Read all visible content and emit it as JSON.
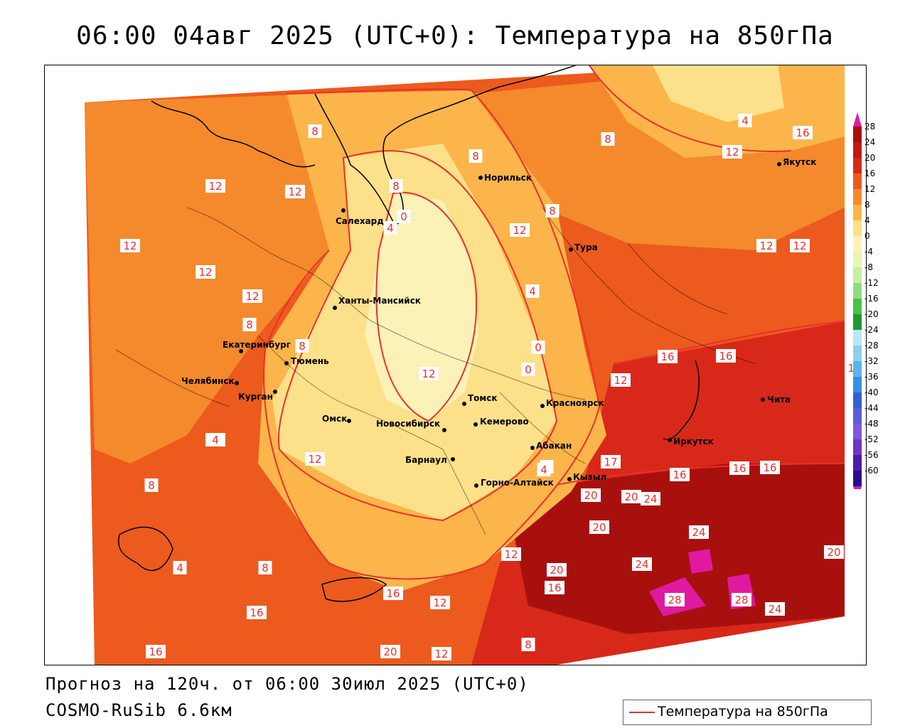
{
  "title": "06:00 04авг 2025 (UTC+0): Температура на 850гПа",
  "forecast_text": "Прогноз на 120ч. от 06:00 30июл 2025 (UTC+0)",
  "model_text": "COSMO-RuSib 6.6км",
  "legend_label": "Температура на 850гПа",
  "colors": {
    "isoline": "#e8302f",
    "cold_zone": "#fcf2b8",
    "mild_zone": "#fde08a",
    "warm_zone": "#fbb54a",
    "hot_zone": "#f48a2c",
    "hotter_zone": "#ec5a1e",
    "very_hot_zone": "#d8281a",
    "extreme_zone": "#a8100e",
    "peak_zone": "#e01aa0"
  },
  "colorbar": {
    "labels": [
      "28",
      "24",
      "20",
      "16",
      "12",
      "8",
      "4",
      "0",
      "-4",
      "-8",
      "-12",
      "-16",
      "-20",
      "-24",
      "-28",
      "-32",
      "-36",
      "-40",
      "-44",
      "-48",
      "-52",
      "-56",
      "-60"
    ],
    "colors": [
      "#a8100e",
      "#c01a12",
      "#d8281a",
      "#ec5a1e",
      "#f48a2c",
      "#fbb54a",
      "#fde08a",
      "#fcf2b8",
      "#e8f6b0",
      "#c6efa8",
      "#8fdc7f",
      "#4cc24a",
      "#1f9a2e",
      "#b8e8f4",
      "#8cd0f0",
      "#5cb4ec",
      "#3a8ee0",
      "#2f62d0",
      "#5b5cd6",
      "#7e58d8",
      "#7036c0",
      "#4c1ca8",
      "#2c0a8a"
    ]
  },
  "cities": [
    {
      "name": "Салехард"
    },
    {
      "name": "Норильск"
    },
    {
      "name": "Якутск"
    },
    {
      "name": "Тура"
    },
    {
      "name": "Ханты-Мансийск"
    },
    {
      "name": "Екатеринбург"
    },
    {
      "name": "Тюмень"
    },
    {
      "name": "Челябинск"
    },
    {
      "name": "Курган"
    },
    {
      "name": "Омск"
    },
    {
      "name": "Новосибирск"
    },
    {
      "name": "Томск"
    },
    {
      "name": "Кемерово"
    },
    {
      "name": "Красноярск"
    },
    {
      "name": "Абакан"
    },
    {
      "name": "Барнаул"
    },
    {
      "name": "Горно-Алтайск"
    },
    {
      "name": "Кызыл"
    },
    {
      "name": "Иркутск"
    },
    {
      "name": "Чита"
    }
  ],
  "isoline_labels": [
    "8",
    "12",
    "12",
    "12",
    "12",
    "12",
    "8",
    "8",
    "8",
    "0",
    "4",
    "8",
    "12",
    "8",
    "4",
    "0",
    "12",
    "12",
    "12",
    "12",
    "8",
    "4",
    "0",
    "16",
    "16",
    "12",
    "12",
    "8",
    "4",
    "12",
    "8",
    "17",
    "16",
    "16",
    "16",
    "20",
    "24",
    "24",
    "20",
    "20",
    "24",
    "20",
    "16",
    "24",
    "28",
    "28",
    "24",
    "20",
    "12",
    "12",
    "16",
    "16",
    "16",
    "20",
    "12",
    "8",
    "12",
    "8",
    "4",
    "12",
    "16",
    "4"
  ]
}
